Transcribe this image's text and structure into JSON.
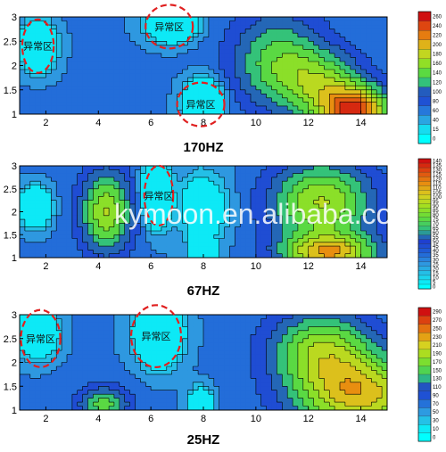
{
  "chart_data": [
    {
      "type": "heatmap",
      "title": "170HZ",
      "xlim": [
        1,
        15
      ],
      "ylim": [
        1,
        3
      ],
      "x_ticks": [
        "2",
        "4",
        "6",
        "8",
        "10",
        "12",
        "14"
      ],
      "y_ticks": [
        "1",
        "1.5",
        "2",
        "2.5",
        "3"
      ],
      "colorbar": {
        "min": 0,
        "max": 260,
        "ticks": [
          "260",
          "240",
          "220",
          "200",
          "180",
          "160",
          "140",
          "120",
          "100",
          "80",
          "60",
          "40",
          "15",
          "0"
        ]
      },
      "anomalies": [
        {
          "label": "异常区",
          "x": 1.7,
          "y": 2.4,
          "rx": 0.6,
          "ry": 0.55
        },
        {
          "label": "异常区",
          "x": 6.7,
          "y": 2.8,
          "rx": 0.9,
          "ry": 0.45
        },
        {
          "label": "异常区",
          "x": 7.9,
          "y": 1.2,
          "rx": 0.9,
          "ry": 0.45
        }
      ],
      "highs": [
        {
          "x": 1.7,
          "y": 2.4,
          "sx": 0.55,
          "sy": 0.4,
          "a": 250
        },
        {
          "x": 6.8,
          "y": 2.85,
          "sx": 0.8,
          "sy": 0.3,
          "a": 230
        },
        {
          "x": 8.0,
          "y": 1.25,
          "sx": 0.6,
          "sy": 0.4,
          "a": 240
        }
      ],
      "lows": [
        {
          "x": 13.8,
          "y": 1.05,
          "sx": 1.3,
          "sy": 0.5,
          "a": 170
        },
        {
          "x": 10.8,
          "y": 2.1,
          "sx": 1.8,
          "sy": 1.0,
          "a": 80
        },
        {
          "x": 12.6,
          "y": 1.6,
          "sx": 1.6,
          "sy": 0.7,
          "a": 80
        }
      ]
    },
    {
      "type": "heatmap",
      "title": "67HZ",
      "xlim": [
        1,
        15
      ],
      "ylim": [
        1,
        3
      ],
      "x_ticks": [
        "2",
        "4",
        "6",
        "8",
        "10",
        "12",
        "14"
      ],
      "y_ticks": [
        "1",
        "1.5",
        "2",
        "2.5",
        "3"
      ],
      "colorbar": {
        "min": 0,
        "max": 140,
        "ticks": [
          "140",
          "135",
          "130",
          "125",
          "120",
          "115",
          "110",
          "105",
          "100",
          "95",
          "90",
          "85",
          "80",
          "75",
          "70",
          "65",
          "60",
          "55",
          "50",
          "45",
          "40",
          "35",
          "30",
          "25",
          "20",
          "15",
          "10",
          "5",
          "0"
        ]
      },
      "anomalies": [
        {
          "label": "异常区",
          "x": 6.3,
          "y": 2.35,
          "rx": 0.55,
          "ry": 0.65
        }
      ],
      "highs": [
        {
          "x": 6.2,
          "y": 2.4,
          "sx": 0.45,
          "sy": 0.6,
          "a": 135
        },
        {
          "x": 1.6,
          "y": 2.1,
          "sx": 0.5,
          "sy": 0.35,
          "a": 110
        },
        {
          "x": 8.0,
          "y": 1.1,
          "sx": 0.4,
          "sy": 0.3,
          "a": 110
        },
        {
          "x": 8.0,
          "y": 2.1,
          "sx": 0.9,
          "sy": 0.7,
          "a": 50
        }
      ],
      "lows": [
        {
          "x": 4.3,
          "y": 2.0,
          "sx": 1.0,
          "sy": 0.9,
          "a": 60
        },
        {
          "x": 12.8,
          "y": 1.1,
          "sx": 1.8,
          "sy": 0.4,
          "a": 70
        },
        {
          "x": 12.5,
          "y": 2.2,
          "sx": 2.0,
          "sy": 0.9,
          "a": 60
        }
      ]
    },
    {
      "type": "heatmap",
      "title": "25HZ",
      "xlim": [
        1,
        15
      ],
      "ylim": [
        1,
        3
      ],
      "x_ticks": [
        "2",
        "4",
        "6",
        "8",
        "10",
        "12",
        "14"
      ],
      "y_ticks": [
        "1",
        "1.5",
        "2",
        "2.5",
        "3"
      ],
      "colorbar": {
        "min": 0,
        "max": 290,
        "ticks": [
          "290",
          "270",
          "250",
          "230",
          "210",
          "190",
          "170",
          "150",
          "130",
          "110",
          "90",
          "70",
          "50",
          "30",
          "10",
          "0"
        ]
      },
      "anomalies": [
        {
          "label": "异常区",
          "x": 1.8,
          "y": 2.5,
          "rx": 0.75,
          "ry": 0.6
        },
        {
          "label": "异常区",
          "x": 6.2,
          "y": 2.55,
          "rx": 0.95,
          "ry": 0.65
        }
      ],
      "highs": [
        {
          "x": 1.7,
          "y": 2.6,
          "sx": 0.6,
          "sy": 0.4,
          "a": 270
        },
        {
          "x": 6.3,
          "y": 2.6,
          "sx": 0.75,
          "sy": 0.55,
          "a": 270
        },
        {
          "x": 7.9,
          "y": 1.15,
          "sx": 0.4,
          "sy": 0.3,
          "a": 160
        }
      ],
      "lows": [
        {
          "x": 14.0,
          "y": 1.3,
          "sx": 2.5,
          "sy": 0.8,
          "a": 150
        },
        {
          "x": 12.5,
          "y": 2.3,
          "sx": 2.0,
          "sy": 0.8,
          "a": 110
        },
        {
          "x": 4.2,
          "y": 1.1,
          "sx": 1.0,
          "sy": 0.4,
          "a": 90
        }
      ]
    }
  ],
  "watermark": "kymoon.en.alibaba.com",
  "colors": {
    "anomaly_outline": "#e02020",
    "colorscale": [
      "#00ffff",
      "#22c8e8",
      "#2e96e0",
      "#1f5fd6",
      "#1f3ed0",
      "#2fbf80",
      "#5fdc3c",
      "#a0e020",
      "#d8d020",
      "#e89010",
      "#e05010",
      "#d01010"
    ]
  }
}
